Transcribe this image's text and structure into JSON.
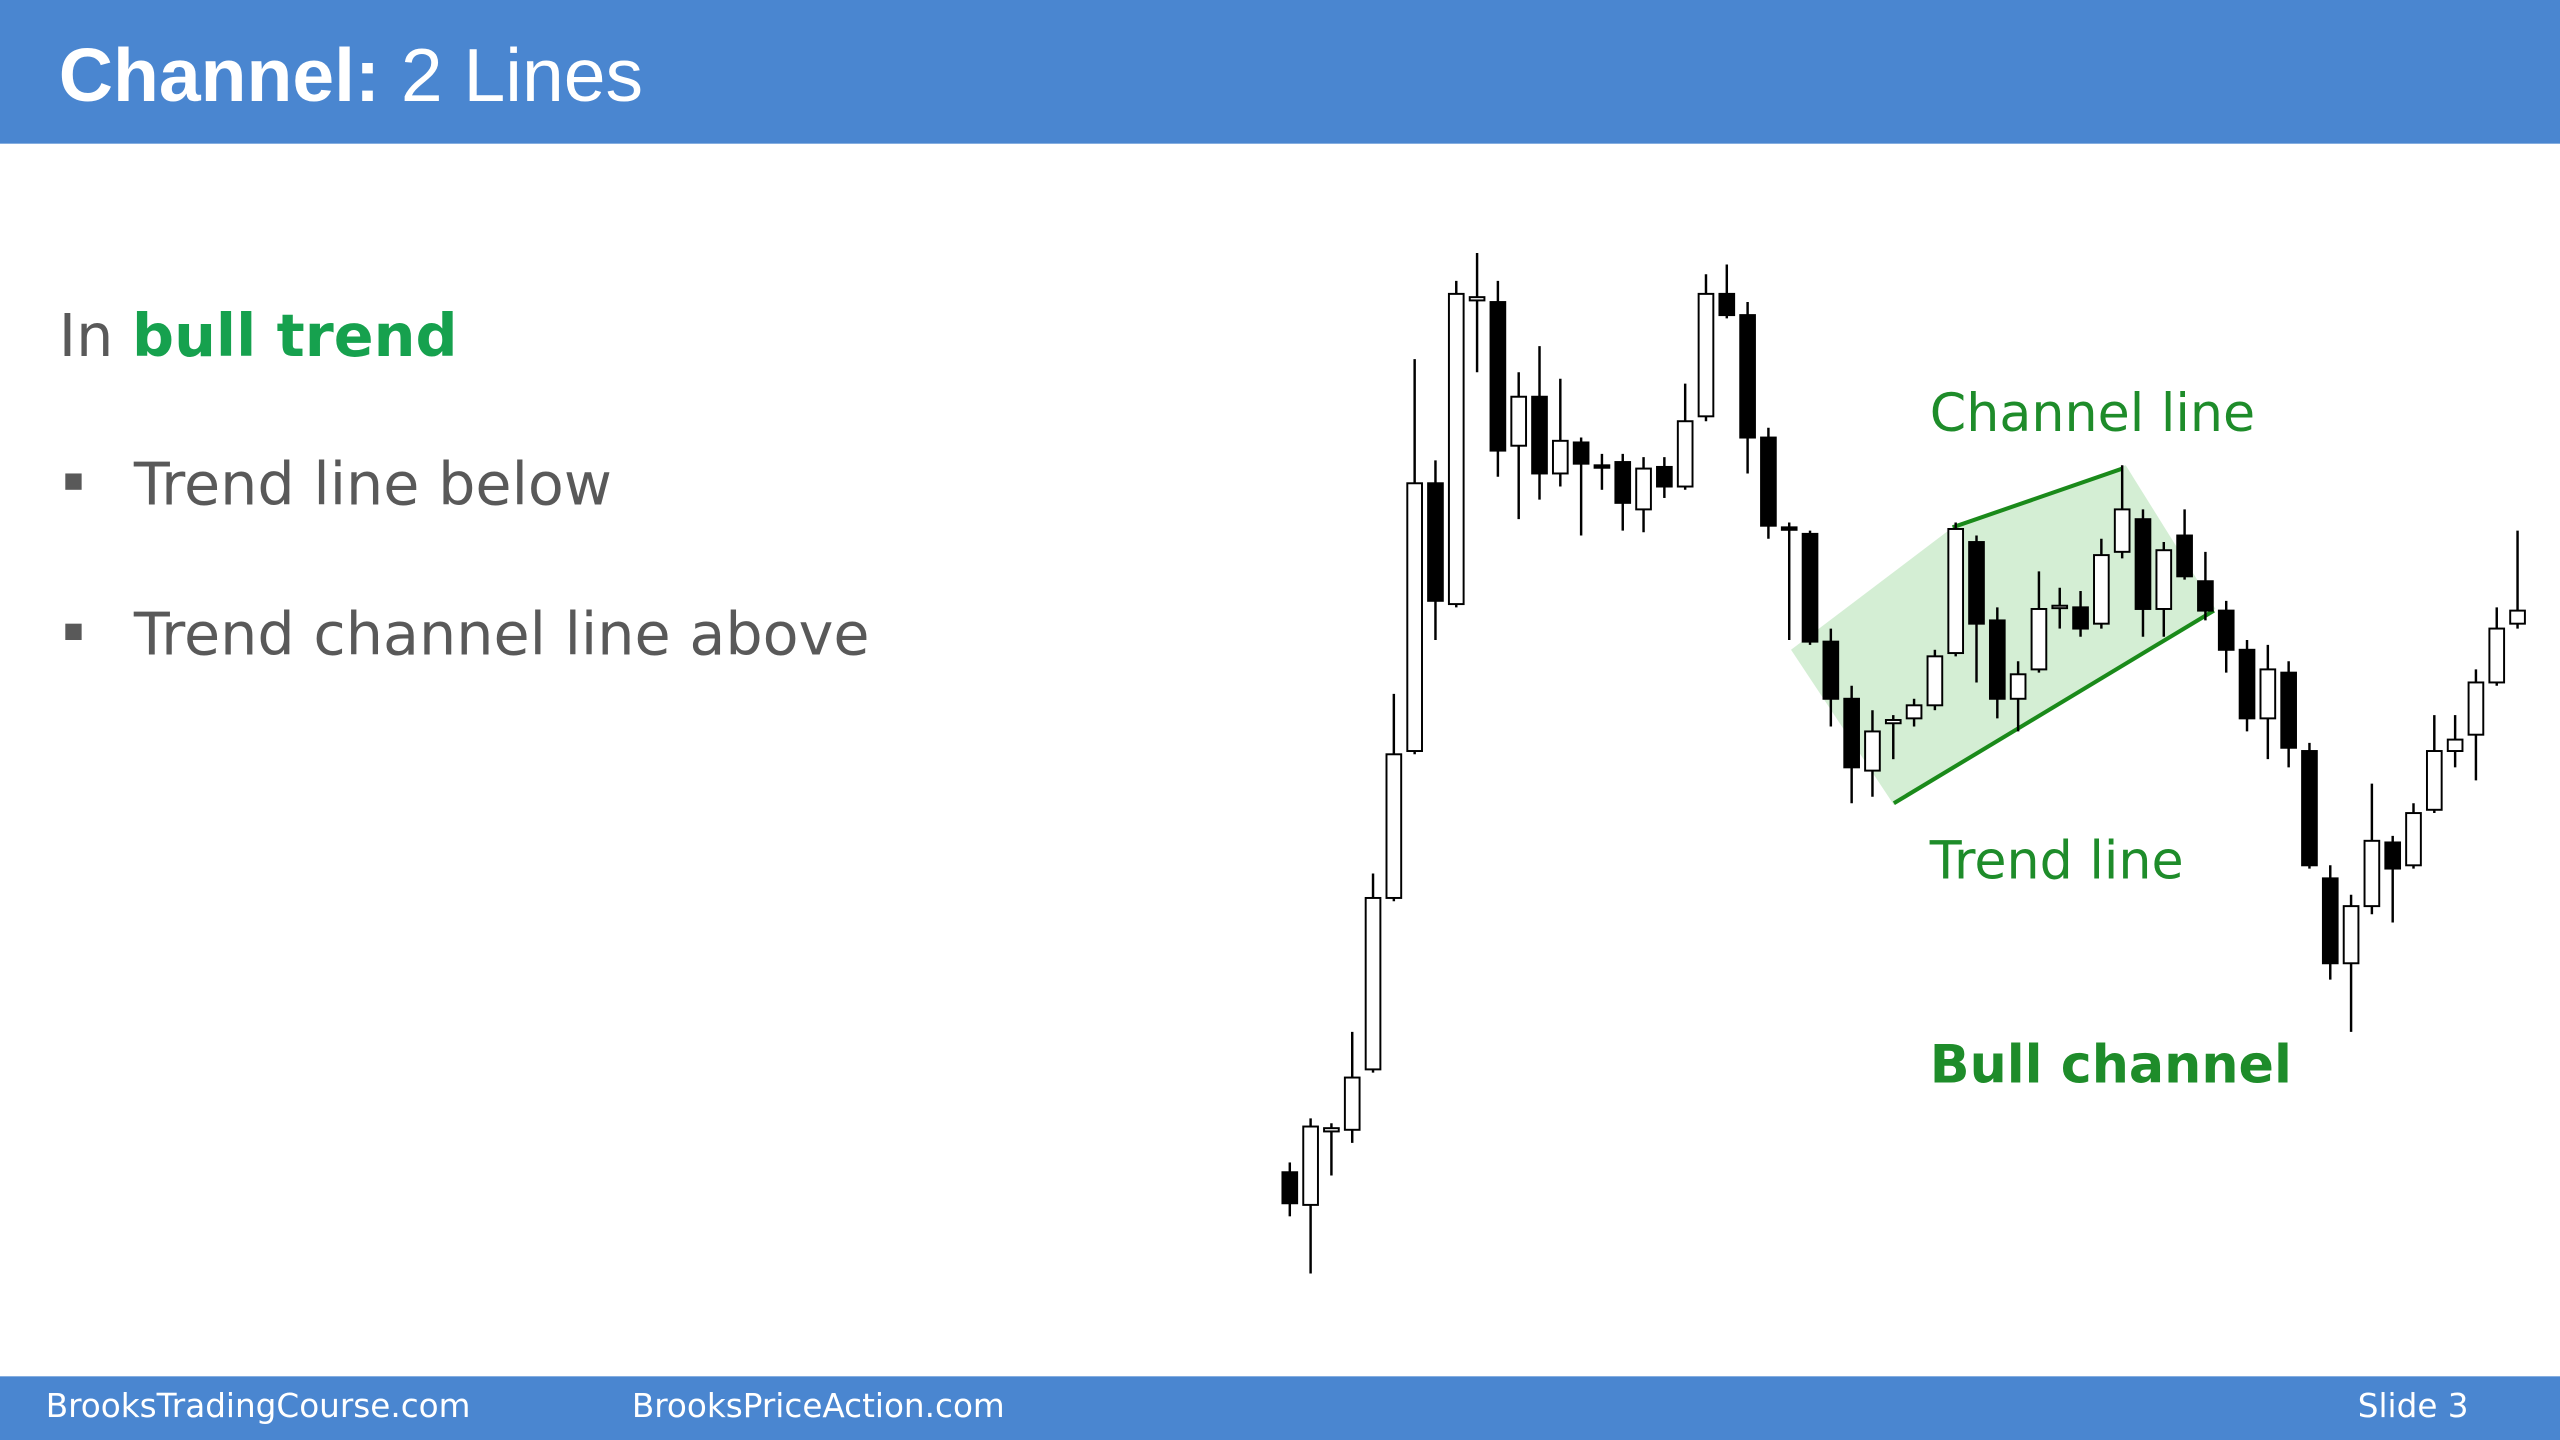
{
  "slide": {
    "header": {
      "title_bold": "Channel:",
      "title_rest": "2 Lines"
    },
    "heading": {
      "lead": "In",
      "emphasis": "bull trend"
    },
    "bullets": [
      "Trend line below",
      "Trend channel line above"
    ],
    "footer": {
      "left": "BrooksTradingCourse.com",
      "middle": "BrooksPriceAction.com",
      "right": "Slide 3"
    }
  },
  "chart_data": {
    "type": "candlestick",
    "annotations": [
      "Channel line",
      "Trend line",
      "Bull channel"
    ],
    "up_color": "#ffffff",
    "down_color": "#000000",
    "wick_color": "#000000",
    "open": [
      82,
      62,
      107,
      108,
      145,
      250,
      340,
      504,
      430,
      616,
      615,
      527,
      557,
      510,
      529,
      515,
      517,
      488,
      514,
      502,
      545,
      620,
      607,
      532,
      477,
      473,
      407,
      372,
      328,
      357,
      360,
      368,
      400,
      468,
      420,
      372,
      390,
      428,
      428,
      418,
      462,
      482,
      427,
      472,
      444,
      426,
      402,
      360,
      388,
      340,
      262,
      210,
      245,
      284,
      270,
      304,
      340,
      350,
      382,
      418
    ],
    "high": [
      88,
      115,
      112,
      168,
      265,
      375,
      580,
      518,
      628,
      645,
      628,
      572,
      588,
      568,
      532,
      522,
      522,
      520,
      520,
      565,
      632,
      638,
      615,
      538,
      480,
      475,
      415,
      380,
      365,
      362,
      372,
      402,
      480,
      472,
      428,
      395,
      450,
      440,
      438,
      470,
      515,
      488,
      468,
      488,
      462,
      432,
      408,
      405,
      395,
      345,
      270,
      252,
      320,
      288,
      308,
      362,
      362,
      390,
      428,
      475
    ],
    "low": [
      55,
      20,
      80,
      100,
      143,
      248,
      338,
      408,
      428,
      572,
      508,
      482,
      494,
      502,
      472,
      500,
      475,
      474,
      495,
      500,
      542,
      605,
      510,
      470,
      408,
      405,
      355,
      308,
      312,
      335,
      355,
      365,
      398,
      382,
      360,
      352,
      388,
      415,
      410,
      415,
      458,
      410,
      410,
      445,
      420,
      388,
      352,
      335,
      330,
      268,
      200,
      168,
      240,
      235,
      268,
      302,
      330,
      322,
      380,
      415
    ],
    "close": [
      63,
      110,
      109,
      140,
      250,
      338,
      504,
      432,
      620,
      618,
      524,
      557,
      510,
      530,
      516,
      514,
      492,
      513,
      502,
      542,
      620,
      607,
      532,
      478,
      476,
      407,
      372,
      330,
      352,
      359,
      368,
      398,
      476,
      418,
      372,
      387,
      427,
      429,
      415,
      460,
      488,
      427,
      463,
      447,
      426,
      402,
      360,
      390,
      342,
      270,
      210,
      245,
      285,
      268,
      302,
      340,
      347,
      382,
      415,
      426
    ]
  }
}
